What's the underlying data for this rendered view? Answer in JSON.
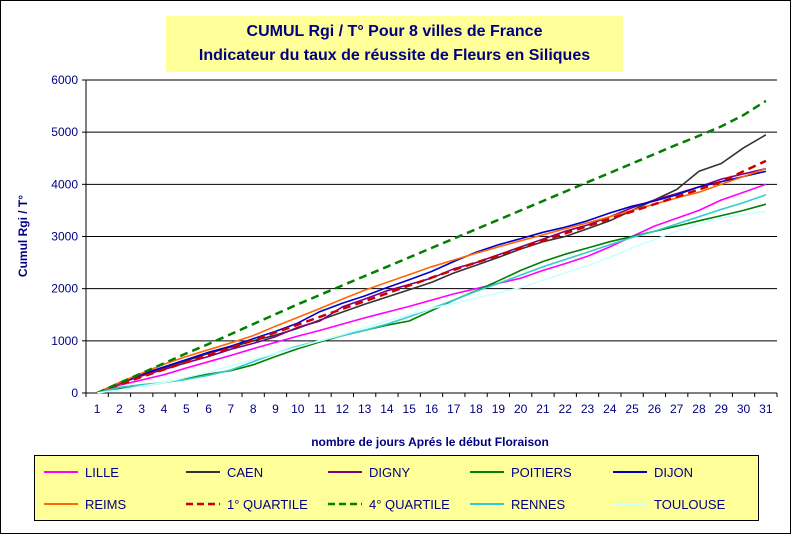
{
  "chart_data": {
    "type": "line",
    "title": "CUMUL Rgi / T° Pour 8 villes de France",
    "subtitle": "Indicateur du taux de réussite de Fleurs en Siliques",
    "xlabel": "nombre de jours Aprés le début Floraison",
    "ylabel": "Cumul Rgi / T°",
    "categories": [
      "1",
      "2",
      "3",
      "4",
      "5",
      "6",
      "7",
      "8",
      "9",
      "10",
      "11",
      "12",
      "13",
      "14",
      "15",
      "16",
      "17",
      "18",
      "19",
      "20",
      "21",
      "22",
      "23",
      "24",
      "25",
      "26",
      "27",
      "28",
      "29",
      "30",
      "31"
    ],
    "ylim": [
      0,
      6000
    ],
    "yticks": [
      "0",
      "1000",
      "2000",
      "3000",
      "4000",
      "5000",
      "6000"
    ],
    "grid": "horizontal",
    "legend_position": "bottom",
    "series": [
      {
        "name": "LILLE",
        "color": "#ff00ff",
        "dash": "solid",
        "values": [
          0,
          150,
          250,
          350,
          480,
          600,
          720,
          850,
          970,
          1090,
          1200,
          1320,
          1440,
          1550,
          1660,
          1780,
          1900,
          2000,
          2100,
          2200,
          2350,
          2480,
          2620,
          2800,
          3000,
          3200,
          3350,
          3500,
          3700,
          3850,
          4000
        ]
      },
      {
        "name": "CAEN",
        "color": "#333333",
        "dash": "solid",
        "values": [
          0,
          180,
          330,
          480,
          620,
          760,
          880,
          1000,
          1110,
          1240,
          1400,
          1550,
          1700,
          1840,
          1980,
          2120,
          2300,
          2450,
          2600,
          2760,
          2900,
          3000,
          3150,
          3300,
          3500,
          3700,
          3900,
          4250,
          4400,
          4700,
          4950
        ]
      },
      {
        "name": "DIGNY",
        "color": "#800080",
        "dash": "solid",
        "values": [
          0,
          200,
          330,
          450,
          580,
          700,
          840,
          950,
          1080,
          1260,
          1380,
          1650,
          1800,
          1960,
          2080,
          2200,
          2380,
          2500,
          2650,
          2800,
          2950,
          3100,
          3220,
          3380,
          3550,
          3700,
          3820,
          3950,
          4100,
          4200,
          4300
        ]
      },
      {
        "name": "POITIERS",
        "color": "#008000",
        "dash": "solid",
        "values": [
          0,
          80,
          130,
          200,
          280,
          360,
          430,
          540,
          700,
          850,
          980,
          1100,
          1200,
          1300,
          1380,
          1580,
          1780,
          1960,
          2150,
          2350,
          2520,
          2660,
          2780,
          2900,
          3000,
          3100,
          3200,
          3300,
          3400,
          3500,
          3620
        ]
      },
      {
        "name": "DIJON",
        "color": "#0000cc",
        "dash": "solid",
        "values": [
          0,
          200,
          360,
          500,
          640,
          780,
          900,
          1040,
          1180,
          1340,
          1560,
          1720,
          1860,
          2020,
          2170,
          2330,
          2520,
          2700,
          2840,
          2960,
          3080,
          3180,
          3300,
          3450,
          3580,
          3680,
          3800,
          3950,
          4050,
          4150,
          4250
        ]
      },
      {
        "name": "REIMS",
        "color": "#ff6600",
        "dash": "solid",
        "values": [
          0,
          200,
          380,
          550,
          700,
          830,
          960,
          1100,
          1280,
          1450,
          1620,
          1800,
          1970,
          2120,
          2270,
          2420,
          2550,
          2680,
          2800,
          2920,
          3030,
          3150,
          3260,
          3380,
          3500,
          3620,
          3740,
          3850,
          4000,
          4150,
          4300
        ]
      },
      {
        "name": "1° QUARTILE",
        "color": "#cc0000",
        "dash": "dashed",
        "values": [
          0,
          160,
          310,
          450,
          590,
          730,
          870,
          1010,
          1160,
          1310,
          1460,
          1610,
          1760,
          1910,
          2060,
          2210,
          2360,
          2500,
          2640,
          2780,
          2920,
          3060,
          3200,
          3340,
          3480,
          3620,
          3760,
          3900,
          4050,
          4250,
          4450
        ]
      },
      {
        "name": "4° QUARTILE",
        "color": "#008000",
        "dash": "dashed",
        "values": [
          0,
          190,
          380,
          570,
          760,
          940,
          1130,
          1320,
          1510,
          1700,
          1880,
          2060,
          2240,
          2420,
          2600,
          2780,
          2960,
          3140,
          3320,
          3500,
          3680,
          3860,
          4040,
          4220,
          4400,
          4580,
          4760,
          4930,
          5110,
          5330,
          5600
        ]
      },
      {
        "name": "RENNES",
        "color": "#33cccc",
        "dash": "solid",
        "values": [
          0,
          110,
          160,
          200,
          260,
          340,
          440,
          600,
          760,
          900,
          1000,
          1100,
          1200,
          1320,
          1460,
          1620,
          1780,
          1950,
          2100,
          2260,
          2420,
          2560,
          2700,
          2840,
          2980,
          3100,
          3240,
          3380,
          3520,
          3650,
          3800
        ]
      },
      {
        "name": "TOULOUSE",
        "color": "#ccffff",
        "dash": "solid",
        "values": [
          0,
          60,
          130,
          200,
          300,
          400,
          520,
          640,
          760,
          880,
          1000,
          1120,
          1250,
          1380,
          1500,
          1620,
          1720,
          1820,
          1920,
          2020,
          2160,
          2300,
          2440,
          2600,
          2780,
          2940,
          3100,
          3240,
          3350,
          3430,
          3480
        ]
      }
    ]
  }
}
